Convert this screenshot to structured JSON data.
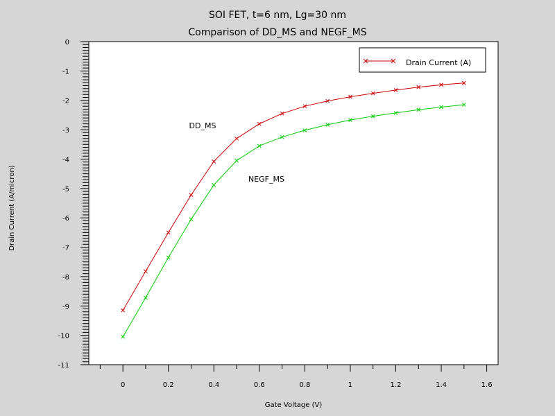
{
  "chart_data": {
    "type": "line",
    "title": "SOI FET,  t=6 nm, Lg=30 nm",
    "subtitle": "Comparison of DD_MS and NEGF_MS",
    "xlabel": "Gate Voltage (V)",
    "ylabel": "Drain Current (A/micron)",
    "xlim": [
      -0.15,
      1.65
    ],
    "ylim": [
      -11,
      0
    ],
    "x_ticks": [
      "0",
      "0.2",
      "0.4",
      "0.6",
      "0.8",
      "1",
      "1.2",
      "1.4",
      "1.6"
    ],
    "y_ticks": [
      "0",
      "-1",
      "-2",
      "-3",
      "-4",
      "-5",
      "-6",
      "-7",
      "-8",
      "-9",
      "-10",
      "-11"
    ],
    "legend": {
      "position": "top-right",
      "label": "Drain Current (A)"
    },
    "grid": false,
    "x": [
      0,
      0.1,
      0.2,
      0.3,
      0.4,
      0.5,
      0.6,
      0.7,
      0.8,
      0.9,
      1.0,
      1.1,
      1.2,
      1.3,
      1.4,
      1.5
    ],
    "series": [
      {
        "label": "DD_MS",
        "color": "#cc0000",
        "values": [
          -9.15,
          -7.82,
          -6.5,
          -5.22,
          -4.08,
          -3.3,
          -2.8,
          -2.45,
          -2.2,
          -2.02,
          -1.88,
          -1.76,
          -1.65,
          -1.55,
          -1.47,
          -1.41
        ]
      },
      {
        "label": "NEGF_MS",
        "color": "#00cc00",
        "values": [
          -10.05,
          -8.72,
          -7.35,
          -6.05,
          -4.88,
          -4.05,
          -3.55,
          -3.25,
          -3.02,
          -2.83,
          -2.67,
          -2.54,
          -2.43,
          -2.32,
          -2.23,
          -2.15
        ]
      }
    ]
  }
}
